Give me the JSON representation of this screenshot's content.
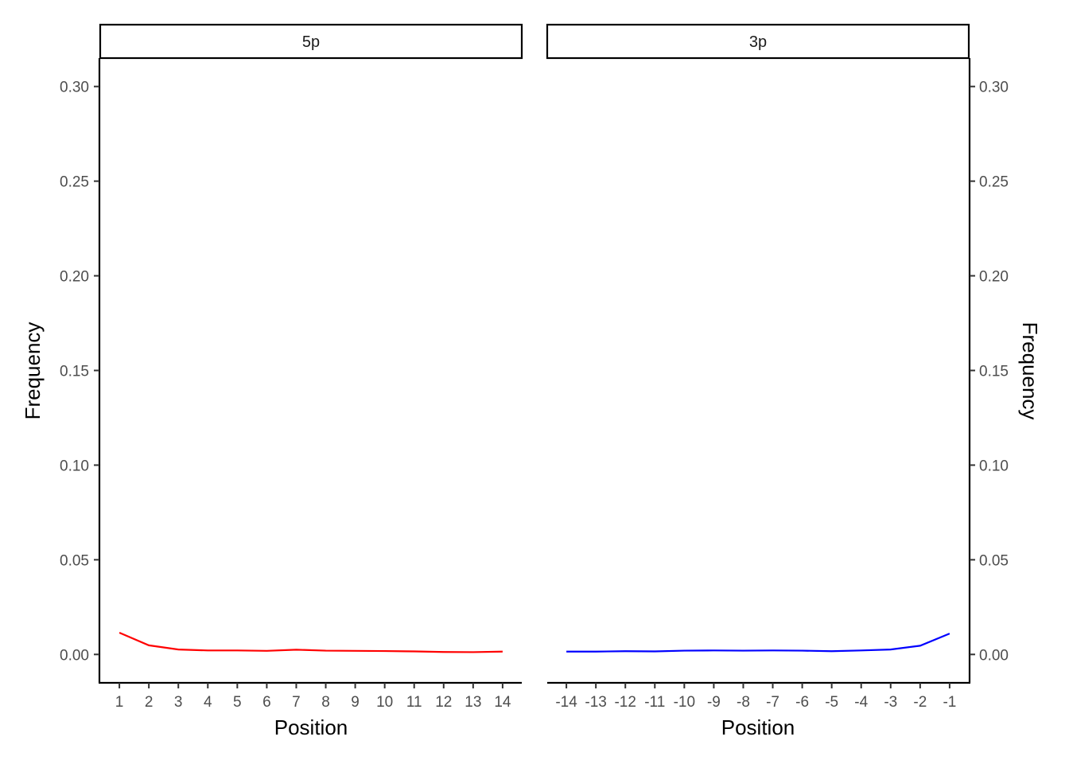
{
  "chart_data": {
    "type": "line",
    "ylabel": "Frequency",
    "ylim": [
      -0.015,
      0.315
    ],
    "y_ticks": [
      0.0,
      0.05,
      0.1,
      0.15,
      0.2,
      0.25,
      0.3
    ],
    "y_tick_labels": [
      "0.00",
      "0.05",
      "0.10",
      "0.15",
      "0.20",
      "0.25",
      "0.30"
    ],
    "grid": false,
    "panels": [
      {
        "strip": "5p",
        "xlabel": "Position",
        "x": [
          1,
          2,
          3,
          4,
          5,
          6,
          7,
          8,
          9,
          10,
          11,
          12,
          13,
          14
        ],
        "x_tick_labels": [
          "1",
          "2",
          "3",
          "4",
          "5",
          "6",
          "7",
          "8",
          "9",
          "10",
          "11",
          "12",
          "13",
          "14"
        ],
        "color": "#ff0000",
        "values": [
          0.0115,
          0.0048,
          0.0026,
          0.0021,
          0.0021,
          0.0019,
          0.0025,
          0.002,
          0.0019,
          0.0018,
          0.0016,
          0.0013,
          0.0012,
          0.0015
        ]
      },
      {
        "strip": "3p",
        "xlabel": "Position",
        "x": [
          -14,
          -13,
          -12,
          -11,
          -10,
          -9,
          -8,
          -7,
          -6,
          -5,
          -4,
          -3,
          -2,
          -1
        ],
        "x_tick_labels": [
          "-14",
          "-13",
          "-12",
          "-11",
          "-10",
          "-9",
          "-8",
          "-7",
          "-6",
          "-5",
          "-4",
          "-3",
          "-2",
          "-1"
        ],
        "color": "#0000ff",
        "values": [
          0.0015,
          0.0015,
          0.0017,
          0.0016,
          0.002,
          0.0021,
          0.002,
          0.0021,
          0.002,
          0.0017,
          0.0021,
          0.0026,
          0.0046,
          0.011
        ]
      }
    ]
  }
}
